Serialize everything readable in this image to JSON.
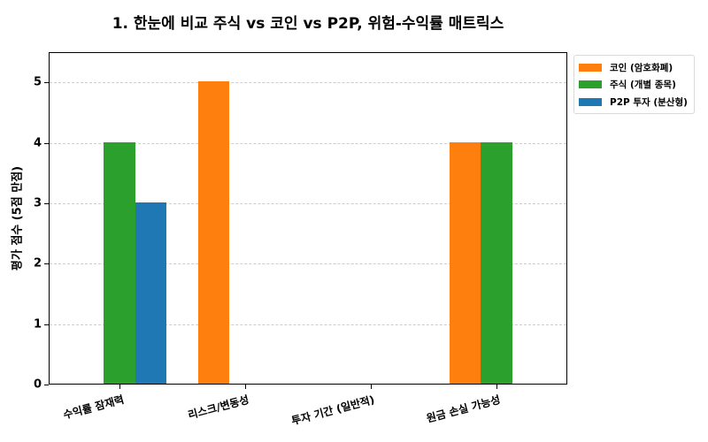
{
  "chart_data": {
    "type": "bar",
    "title": "1. 한눈에 비교 주식 vs 코인 vs P2P, 위험-수익률 매트릭스",
    "xlabel": "",
    "ylabel": "평가 점수 (5점 만점)",
    "ylim": [
      0,
      5.5
    ],
    "yticks": [
      0,
      1,
      2,
      3,
      4,
      5
    ],
    "grid": "y-dashed",
    "legend_position": "upper right outside",
    "categories": [
      "수익률 잠재력",
      "리스크/변동성",
      "투자 기간 (일반적)",
      "원금 손실 가능성"
    ],
    "series": [
      {
        "name": "코인 (암호화폐)",
        "color": "#ff7f0e",
        "values": [
          0,
          5,
          0,
          4
        ]
      },
      {
        "name": "주식 (개별 종목)",
        "color": "#2ca02c",
        "values": [
          4,
          0,
          0,
          4
        ]
      },
      {
        "name": "P2P 투자 (분산형)",
        "color": "#1f77b4",
        "values": [
          3,
          0,
          0,
          0
        ]
      }
    ]
  }
}
